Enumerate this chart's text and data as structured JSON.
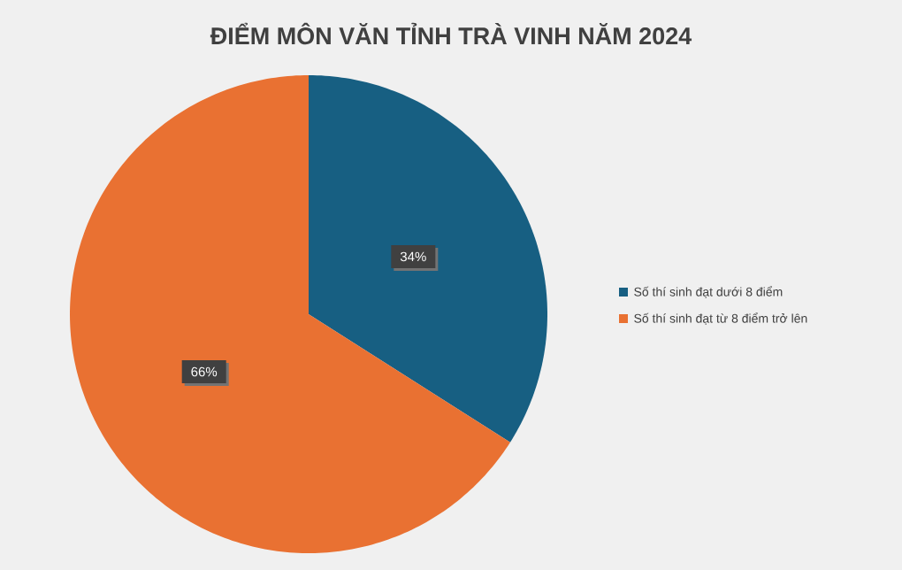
{
  "chart_data": {
    "type": "pie",
    "title": "ĐIỂM MÔN VĂN TỈNH TRÀ VINH NĂM 2024",
    "categories": [
      "Số thí sinh đạt dưới 8 điểm",
      "Số thí sinh đạt từ 8 điểm trở lên"
    ],
    "values": [
      34,
      66
    ],
    "colors": [
      "#175f82",
      "#e97132"
    ],
    "value_labels": [
      "34%",
      "66%"
    ],
    "legend": "right"
  }
}
